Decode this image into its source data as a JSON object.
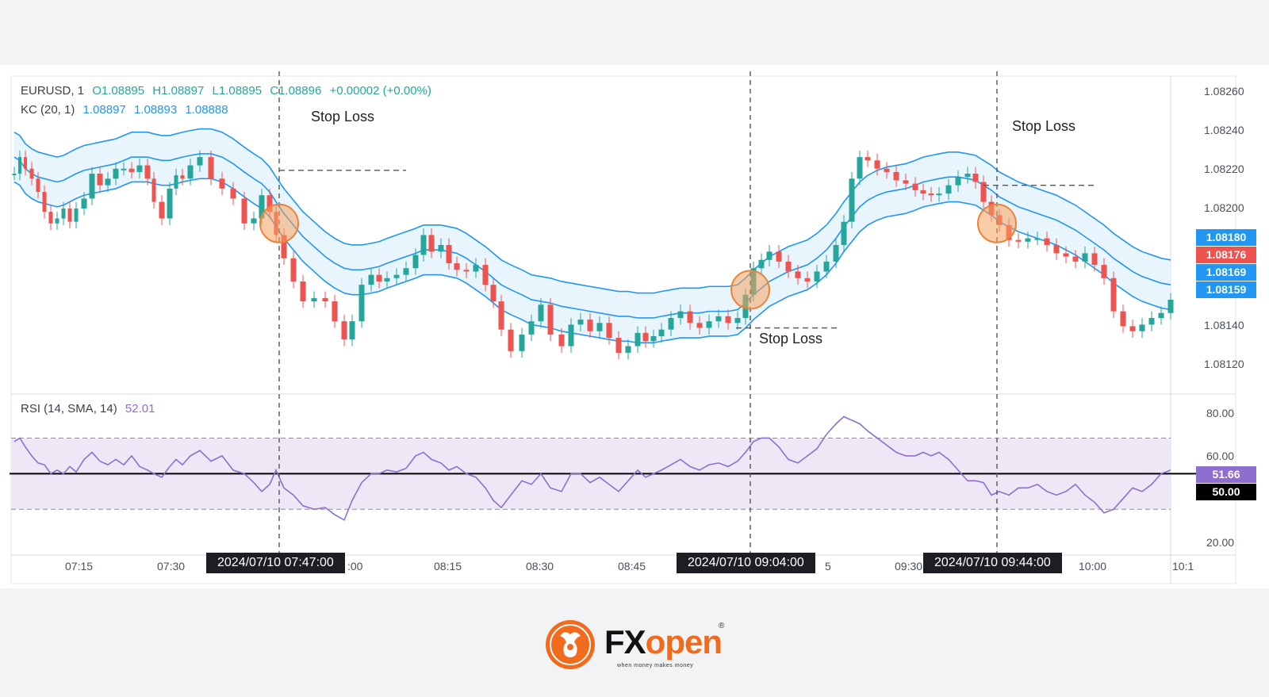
{
  "header": {
    "symbol": "EURUSD, 1",
    "ohlc": {
      "o": "O1.08895",
      "h": "H1.08897",
      "l": "L1.08895",
      "c": "C1.08896",
      "change": "+0.00002 (+0.00%)"
    },
    "kc": {
      "label": "KC (20, 1)",
      "upper": "1.08897",
      "middle": "1.08893",
      "lower": "1.08888"
    },
    "rsi": {
      "label": "RSI (14, SMA, 14)",
      "value": "52.01"
    }
  },
  "annotations": {
    "stop_loss_1": "Stop Loss",
    "stop_loss_2": "Stop Loss",
    "stop_loss_3": "Stop Loss"
  },
  "price_axis": {
    "ticks": [
      "1.08260",
      "1.08240",
      "1.08220",
      "1.08200",
      "1.08140",
      "1.08120"
    ],
    "badges": [
      {
        "text": "1.08180",
        "color": "#2196f3"
      },
      {
        "text": "1.08176",
        "color": "#ef5350"
      },
      {
        "text": "1.08169",
        "color": "#2196f3"
      },
      {
        "text": "1.08159",
        "color": "#2196f3"
      }
    ]
  },
  "rsi_axis": {
    "ticks": [
      "80.00",
      "60.00",
      "20.00"
    ],
    "badge_value": {
      "text": "51.66",
      "color": "#8e6fd0"
    },
    "badge_mid": {
      "text": "50.00",
      "color": "#000000"
    }
  },
  "time_axis": {
    "ticks": [
      "07:15",
      "07:30",
      ":00",
      "08:15",
      "08:30",
      "08:45",
      "5",
      "09:30",
      "10:00",
      "10:1"
    ],
    "date_badges": [
      "2024/07/10  07:47:00",
      "2024/07/10  09:04:00",
      "2024/07/10  09:44:00"
    ]
  },
  "brand": {
    "name_fx": "FX",
    "name_open": "open",
    "registered": "®",
    "tagline": "when money makes money"
  },
  "colors": {
    "up": "#26a69a",
    "down": "#ef5350",
    "kc_line": "#2196f3",
    "kc_fill": "#e3f2fd",
    "rsi_line": "#8e6fd0",
    "rsi_band": "#ede7f6",
    "highlight": "#f5a25d"
  },
  "chart_data": {
    "type": "candlestick",
    "symbol": "EURUSD",
    "timeframe": "1",
    "indicators": [
      "KC (20, 1)",
      "RSI (14, SMA, 14)"
    ],
    "price_ylim": [
      1.08115,
      1.08268
    ],
    "rsi_ylim": [
      15,
      88
    ],
    "rsi_levels": [
      30,
      50,
      70
    ],
    "entries": [
      {
        "time": "2024/07/10 07:47:00",
        "price": 1.08205,
        "stop_loss": 1.08237
      },
      {
        "time": "2024/07/10 09:04:00",
        "price": 1.08165,
        "stop_loss": 1.08142
      },
      {
        "time": "2024/07/10 09:44:00",
        "price": 1.08205,
        "stop_loss": 1.08228
      }
    ],
    "x": [
      0,
      7,
      14,
      22,
      30,
      38,
      46,
      54,
      62,
      70,
      78,
      88,
      98,
      108,
      118,
      128,
      138,
      148,
      158,
      168,
      176,
      186,
      196,
      204,
      212,
      222,
      234,
      248,
      262,
      276,
      290,
      302,
      312,
      322,
      330,
      340,
      352,
      364,
      378,
      392,
      404,
      416,
      426,
      438,
      450,
      460,
      470,
      482,
      494,
      506,
      516,
      526,
      538,
      548,
      558,
      570,
      582,
      594,
      604,
      614,
      626,
      640,
      652,
      664,
      676,
      690,
      702,
      714,
      726,
      738,
      750,
      762,
      774,
      786,
      796,
      806,
      816,
      828,
      840,
      852,
      864,
      876,
      888,
      900,
      912,
      922,
      932,
      942,
      952,
      964,
      976,
      988,
      1000,
      1012,
      1024,
      1036,
      1046,
      1056,
      1066,
      1076,
      1088,
      1100,
      1112,
      1124,
      1136,
      1146,
      1156,
      1166,
      1178,
      1190,
      1202,
      1212,
      1222,
      1232,
      1242,
      1254,
      1266,
      1278,
      1290,
      1302,
      1314,
      1326,
      1338,
      1350,
      1362,
      1374,
      1386,
      1398,
      1410,
      1422,
      1434,
      1446,
      1458
    ],
    "close": [
      1.08235,
      1.08245,
      1.08238,
      1.08232,
      1.08224,
      1.08212,
      1.08205,
      1.08208,
      1.08214,
      1.08206,
      1.08214,
      1.0822,
      1.08235,
      1.08228,
      1.08232,
      1.08238,
      1.08238,
      1.08236,
      1.0824,
      1.08232,
      1.08218,
      1.08208,
      1.08226,
      1.08234,
      1.08232,
      1.0824,
      1.08245,
      1.08232,
      1.08226,
      1.0822,
      1.08205,
      1.08208,
      1.08222,
      1.08212,
      1.08198,
      1.08184,
      1.0817,
      1.08158,
      1.0816,
      1.08158,
      1.08146,
      1.08135,
      1.08146,
      1.08168,
      1.08174,
      1.0817,
      1.08172,
      1.08174,
      1.08178,
      1.08186,
      1.08198,
      1.08188,
      1.08192,
      1.08181,
      1.08177,
      1.08176,
      1.0818,
      1.08168,
      1.08158,
      1.08141,
      1.08128,
      1.08138,
      1.08146,
      1.08156,
      1.08138,
      1.08131,
      1.08144,
      1.08147,
      1.0814,
      1.08145,
      1.08136,
      1.08127,
      1.08131,
      1.08139,
      1.08134,
      1.08137,
      1.08141,
      1.08148,
      1.08152,
      1.08145,
      1.08142,
      1.08146,
      1.08149,
      1.08145,
      1.08148,
      1.08162,
      1.08178,
      1.08183,
      1.08188,
      1.08182,
      1.08176,
      1.08172,
      1.0817,
      1.08176,
      1.08182,
      1.08192,
      1.08206,
      1.08232,
      1.08245,
      1.08243,
      1.08238,
      1.08236,
      1.08231,
      1.08229,
      1.08225,
      1.08223,
      1.08222,
      1.08223,
      1.08228,
      1.08233,
      1.08235,
      1.0823,
      1.08218,
      1.0821,
      1.08204,
      1.08195,
      1.08194,
      1.08196,
      1.08196,
      1.08192,
      1.08187,
      1.08185,
      1.08182,
      1.08187,
      1.0818,
      1.08172,
      1.08152,
      1.08143,
      1.0814,
      1.08144,
      1.08148,
      1.08151,
      1.08159
    ],
    "kc_upper": [
      1.0826,
      1.08258,
      1.08253,
      1.0825,
      1.08248,
      1.08247,
      1.08246,
      1.08245,
      1.08246,
      1.08248,
      1.0825,
      1.08252,
      1.08253,
      1.08254,
      1.08255,
      1.08256,
      1.08258,
      1.0826,
      1.0826,
      1.0826,
      1.08259,
      1.08258,
      1.08258,
      1.08259,
      1.0826,
      1.08261,
      1.08262,
      1.08262,
      1.0826,
      1.08256,
      1.08251,
      1.08247,
      1.08244,
      1.08239,
      1.08233,
      1.08226,
      1.08219,
      1.08212,
      1.08206,
      1.082,
      1.08196,
      1.08193,
      1.08192,
      1.08192,
      1.08193,
      1.08194,
      1.08196,
      1.08198,
      1.082,
      1.08202,
      1.08204,
      1.08204,
      1.08204,
      1.08203,
      1.08202,
      1.08199,
      1.08195,
      1.08191,
      1.08187,
      1.08183,
      1.0818,
      1.08177,
      1.08174,
      1.08173,
      1.08172,
      1.0817,
      1.08169,
      1.08168,
      1.08167,
      1.08166,
      1.08165,
      1.08164,
      1.08164,
      1.08163,
      1.08163,
      1.08163,
      1.08164,
      1.08165,
      1.08166,
      1.08166,
      1.08166,
      1.08167,
      1.08167,
      1.08167,
      1.08168,
      1.08172,
      1.08177,
      1.08181,
      1.08185,
      1.08188,
      1.08191,
      1.08193,
      1.08195,
      1.08199,
      1.08204,
      1.08211,
      1.08218,
      1.08224,
      1.0823,
      1.08234,
      1.08237,
      1.08239,
      1.0824,
      1.08241,
      1.08243,
      1.08245,
      1.08246,
      1.08247,
      1.08248,
      1.08248,
      1.08247,
      1.08246,
      1.08243,
      1.0824,
      1.08236,
      1.08233,
      1.0823,
      1.08228,
      1.08226,
      1.08224,
      1.08222,
      1.08219,
      1.08216,
      1.08212,
      1.08208,
      1.08204,
      1.08199,
      1.08195,
      1.08191,
      1.08188,
      1.08186,
      1.08184,
      1.08183
    ],
    "kc_middle": [
      1.08245,
      1.08243,
      1.08238,
      1.08235,
      1.08233,
      1.08232,
      1.08231,
      1.0823,
      1.08231,
      1.08233,
      1.08235,
      1.08237,
      1.08238,
      1.08239,
      1.0824,
      1.08241,
      1.08243,
      1.08245,
      1.08245,
      1.08245,
      1.08244,
      1.08243,
      1.08243,
      1.08244,
      1.08245,
      1.08246,
      1.08247,
      1.08247,
      1.08245,
      1.08241,
      1.08236,
      1.08232,
      1.08229,
      1.08224,
      1.08218,
      1.08211,
      1.08204,
      1.08197,
      1.08191,
      1.08185,
      1.08181,
      1.08178,
      1.08177,
      1.08177,
      1.08178,
      1.08179,
      1.08181,
      1.08183,
      1.08185,
      1.08187,
      1.08189,
      1.08189,
      1.08189,
      1.08188,
      1.08187,
      1.08184,
      1.0818,
      1.08176,
      1.08172,
      1.08168,
      1.08165,
      1.08162,
      1.08159,
      1.08158,
      1.08157,
      1.08155,
      1.08154,
      1.08153,
      1.08152,
      1.08151,
      1.0815,
      1.08149,
      1.08149,
      1.08148,
      1.08148,
      1.08148,
      1.08149,
      1.0815,
      1.08151,
      1.08151,
      1.08151,
      1.08152,
      1.08152,
      1.08152,
      1.08153,
      1.08157,
      1.08162,
      1.08166,
      1.0817,
      1.08173,
      1.08176,
      1.08178,
      1.0818,
      1.08184,
      1.08189,
      1.08196,
      1.08203,
      1.08209,
      1.08215,
      1.08219,
      1.08222,
      1.08224,
      1.08225,
      1.08226,
      1.08228,
      1.0823,
      1.08231,
      1.08232,
      1.08233,
      1.08233,
      1.08232,
      1.08231,
      1.08228,
      1.08225,
      1.08221,
      1.08218,
      1.08215,
      1.08213,
      1.08211,
      1.08209,
      1.08207,
      1.08204,
      1.08201,
      1.08197,
      1.08193,
      1.08189,
      1.08184,
      1.0818,
      1.08176,
      1.08173,
      1.08171,
      1.08169,
      1.08168
    ],
    "kc_lower": [
      1.0823,
      1.08228,
      1.08223,
      1.0822,
      1.08218,
      1.08217,
      1.08216,
      1.08215,
      1.08216,
      1.08218,
      1.0822,
      1.08222,
      1.08223,
      1.08224,
      1.08225,
      1.08226,
      1.08228,
      1.0823,
      1.0823,
      1.0823,
      1.08229,
      1.08228,
      1.08228,
      1.08229,
      1.0823,
      1.08231,
      1.08232,
      1.08232,
      1.0823,
      1.08226,
      1.08221,
      1.08217,
      1.08214,
      1.08209,
      1.08203,
      1.08196,
      1.08189,
      1.08182,
      1.08176,
      1.0817,
      1.08166,
      1.08163,
      1.08162,
      1.08162,
      1.08163,
      1.08164,
      1.08166,
      1.08168,
      1.0817,
      1.08172,
      1.08174,
      1.08174,
      1.08174,
      1.08173,
      1.08172,
      1.08169,
      1.08165,
      1.08161,
      1.08157,
      1.08153,
      1.0815,
      1.08147,
      1.08144,
      1.08143,
      1.08142,
      1.0814,
      1.08139,
      1.08138,
      1.08137,
      1.08136,
      1.08135,
      1.08134,
      1.08134,
      1.08133,
      1.08133,
      1.08133,
      1.08134,
      1.08135,
      1.08136,
      1.08136,
      1.08136,
      1.08137,
      1.08137,
      1.08137,
      1.08138,
      1.08142,
      1.08147,
      1.08151,
      1.08155,
      1.08158,
      1.08161,
      1.08163,
      1.08165,
      1.08169,
      1.08174,
      1.08181,
      1.08188,
      1.08194,
      1.082,
      1.08204,
      1.08207,
      1.08209,
      1.0821,
      1.08211,
      1.08213,
      1.08215,
      1.08216,
      1.08217,
      1.08218,
      1.08218,
      1.08217,
      1.08216,
      1.08213,
      1.0821,
      1.08206,
      1.08203,
      1.082,
      1.08198,
      1.08196,
      1.08194,
      1.08192,
      1.08189,
      1.08186,
      1.08182,
      1.08178,
      1.08174,
      1.08169,
      1.08165,
      1.08161,
      1.08158,
      1.08156,
      1.08154,
      1.08153
    ],
    "rsi": [
      68,
      70,
      65,
      60,
      56,
      55,
      50,
      52,
      50,
      54,
      51,
      58,
      62,
      57,
      55,
      58,
      55,
      60,
      54,
      52,
      50,
      48,
      54,
      58,
      55,
      60,
      63,
      57,
      60,
      52,
      50,
      45,
      40,
      44,
      52,
      42,
      38,
      32,
      30,
      31,
      27,
      24,
      35,
      45,
      50,
      50,
      52,
      51,
      53,
      60,
      62,
      58,
      56,
      52,
      54,
      50,
      48,
      42,
      35,
      31,
      38,
      46,
      44,
      50,
      42,
      40,
      50,
      50,
      45,
      48,
      44,
      40,
      46,
      52,
      48,
      50,
      52,
      55,
      58,
      54,
      52,
      55,
      56,
      54,
      57,
      62,
      68,
      70,
      70,
      65,
      58,
      56,
      60,
      64,
      72,
      78,
      82,
      80,
      78,
      74,
      70,
      66,
      62,
      60,
      60,
      62,
      60,
      62,
      58,
      52,
      46,
      46,
      45,
      38,
      40,
      38,
      42,
      42,
      44,
      40,
      38,
      40,
      44,
      38,
      34,
      28,
      30,
      36,
      42,
      40,
      44,
      50,
      52
    ]
  }
}
